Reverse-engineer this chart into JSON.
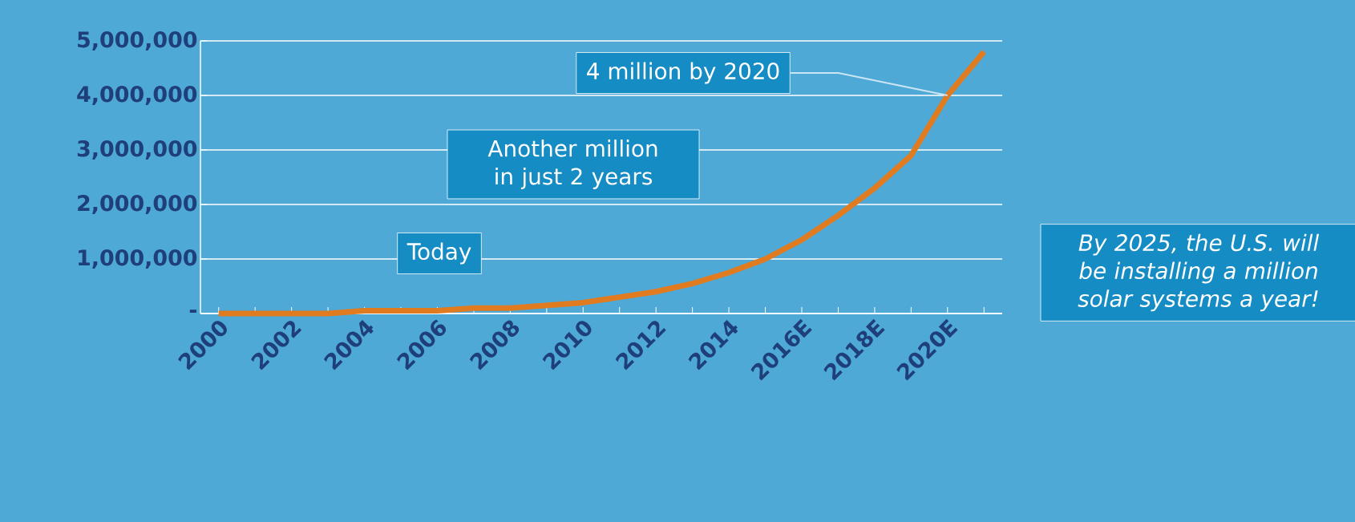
{
  "chart_data": {
    "type": "line",
    "categories": [
      "2000",
      null,
      "2002",
      null,
      "2004",
      null,
      "2006",
      null,
      "2008",
      null,
      "2010",
      null,
      "2012",
      null,
      "2014",
      null,
      "2016E",
      null,
      "2018E",
      null,
      "2020E",
      null
    ],
    "series": [
      {
        "color": "#e07b20",
        "values": [
          0,
          0,
          0,
          0,
          50000,
          50000,
          50000,
          100000,
          100000,
          150000,
          200000,
          300000,
          400000,
          550000,
          750000,
          1000000,
          1350000,
          1800000,
          2300000,
          2900000,
          4000000,
          4800000
        ]
      }
    ],
    "ylim": [
      0,
      5000000
    ],
    "yticks": [
      {
        "value": 0,
        "label": "-"
      },
      {
        "value": 1000000,
        "label": "1,000,000"
      },
      {
        "value": 2000000,
        "label": "2,000,000"
      },
      {
        "value": 3000000,
        "label": "3,000,000"
      },
      {
        "value": 4000000,
        "label": "4,000,000"
      },
      {
        "value": 5000000,
        "label": "5,000,000"
      }
    ],
    "grid": "y",
    "line_style": "solid",
    "annotations": [
      {
        "text": "4 million by 2020",
        "x": "2020E",
        "y": 4000000
      },
      "Another million in just 2 years",
      "Today",
      "By 2025, the U.S. will be installing a million solar systems a year!"
    ]
  }
}
